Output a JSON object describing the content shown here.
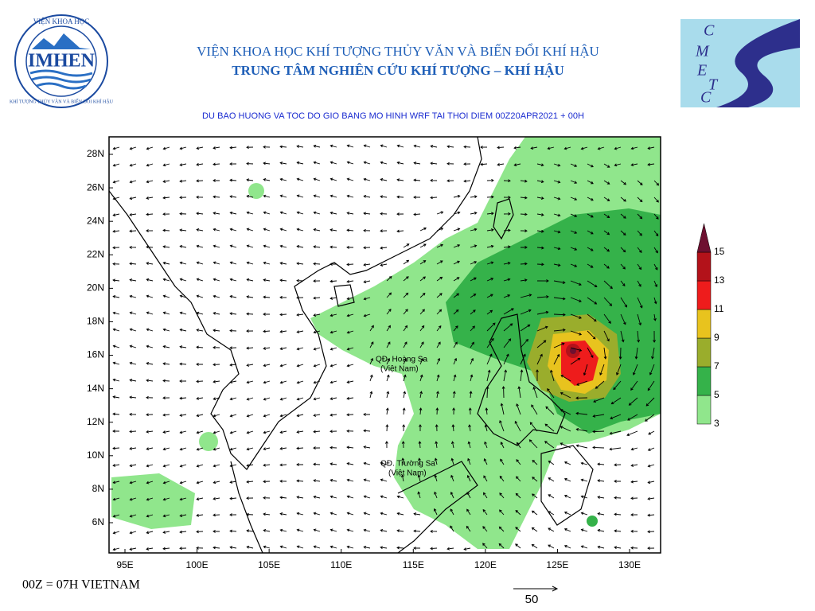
{
  "header": {
    "institute": "VIỆN KHOA HỌC KHÍ TƯỢNG THỦY VĂN VÀ BIẾN ĐỔI KHÍ HẬU",
    "center": "TRUNG TÂM NGHIÊN CỨU KHÍ TƯỢNG – KHÍ HẬU",
    "subtitle": "DU BAO HUONG VA TOC DO GIO BANG MO HINH WRF TAI THOI DIEM  00Z20APR2021 + 00H"
  },
  "logo_left": {
    "name": "IMHEN",
    "ring_top": "VIỆN KHOA HỌC",
    "ring_bottom": "KHÍ TƯỢNG THỦY VĂN VÀ BIẾN ĐỔI KHÍ HẬU"
  },
  "logo_right": {
    "letters": [
      "C",
      "M",
      "E",
      "T",
      "C"
    ]
  },
  "map": {
    "xticks": [
      {
        "value": 95,
        "label": "95E"
      },
      {
        "value": 100,
        "label": "100E"
      },
      {
        "value": 105,
        "label": "105E"
      },
      {
        "value": 110,
        "label": "110E"
      },
      {
        "value": 115,
        "label": "115E"
      },
      {
        "value": 120,
        "label": "120E"
      },
      {
        "value": 125,
        "label": "125E"
      },
      {
        "value": 130,
        "label": "130E"
      }
    ],
    "yticks": [
      {
        "value": 6,
        "label": "6N"
      },
      {
        "value": 8,
        "label": "8N"
      },
      {
        "value": 10,
        "label": "10N"
      },
      {
        "value": 12,
        "label": "12N"
      },
      {
        "value": 14,
        "label": "14N"
      },
      {
        "value": 16,
        "label": "16N"
      },
      {
        "value": 18,
        "label": "18N"
      },
      {
        "value": 20,
        "label": "20N"
      },
      {
        "value": 22,
        "label": "22N"
      },
      {
        "value": 24,
        "label": "24N"
      },
      {
        "value": 26,
        "label": "26N"
      },
      {
        "value": 28,
        "label": "28N"
      }
    ],
    "places": [
      {
        "name": "QĐ. Hoàng Sa",
        "note": "(Việt Nam)"
      },
      {
        "name": "QĐ. Trường Sa",
        "note": "(Việt Nam)"
      }
    ]
  },
  "colorbar": {
    "levels": [
      3,
      5,
      7,
      9,
      11,
      13,
      15
    ],
    "colors": [
      "#90e68c",
      "#35b24a",
      "#9aad2c",
      "#e8c31e",
      "#ee1c1c",
      "#b3121a",
      "#6e1030"
    ]
  },
  "footer": {
    "note": "00Z = 07H VIETNAM",
    "reference_vector": "50"
  }
}
